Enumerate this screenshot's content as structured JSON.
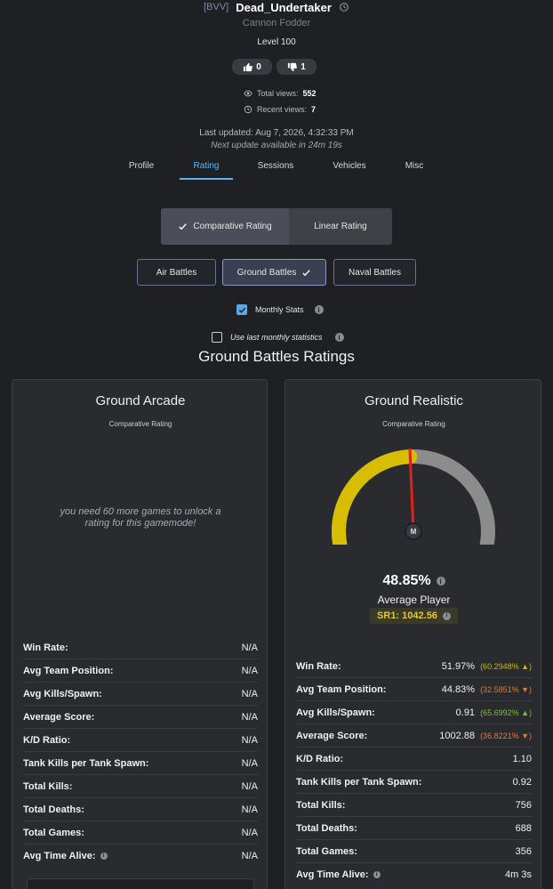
{
  "header": {
    "clan_tag": "[BVV]",
    "username": "Dead_Undertaker",
    "title": "Cannon Fodder",
    "level": "Level 100",
    "likes": "0",
    "dislikes": "1",
    "total_views_label": "Total views:",
    "total_views": "552",
    "recent_views_label": "Recent views:",
    "recent_views": "7",
    "last_updated": "Last updated: Aug 7, 2026, 4:32:33 PM",
    "next_update": "Next update available in 24m 19s"
  },
  "tabs": [
    {
      "label": "Profile",
      "active": false
    },
    {
      "label": "Rating",
      "active": true
    },
    {
      "label": "Sessions",
      "active": false
    },
    {
      "label": "Vehicles",
      "active": false
    },
    {
      "label": "Misc",
      "active": false
    }
  ],
  "rating_toggle": {
    "comparative": "Comparative Rating",
    "linear": "Linear Rating",
    "selected": "comparative"
  },
  "battle_modes": {
    "air": "Air Battles",
    "ground": "Ground Battles",
    "naval": "Naval Battles",
    "selected": "ground"
  },
  "options": {
    "monthly_stats": "Monthly Stats",
    "monthly_checked": true,
    "use_last_monthly": "Use last monthly statistics",
    "use_last_checked": false
  },
  "section_title": "Ground Battles Ratings",
  "arcade": {
    "title": "Ground Arcade",
    "subtitle": "Comparative Rating",
    "locked_message": "you need 60 more games to unlock a rating for this gamemode!",
    "stats": [
      {
        "label": "Win Rate:",
        "value": "N/A"
      },
      {
        "label": "Avg Team Position:",
        "value": "N/A"
      },
      {
        "label": "Avg Kills/Spawn:",
        "value": "N/A"
      },
      {
        "label": "Average Score:",
        "value": "N/A"
      },
      {
        "label": "K/D Ratio:",
        "value": "N/A"
      },
      {
        "label": "Tank Kills per Tank Spawn:",
        "value": "N/A"
      },
      {
        "label": "Total Kills:",
        "value": "N/A"
      },
      {
        "label": "Total Deaths:",
        "value": "N/A"
      },
      {
        "label": "Total Games:",
        "value": "N/A"
      },
      {
        "label": "Avg Time Alive:",
        "value": "N/A"
      }
    ]
  },
  "realistic": {
    "title": "Ground Realistic",
    "subtitle": "Comparative Rating",
    "gauge_fraction": 0.4885,
    "gauge_marker": "M",
    "gauge_colors": {
      "fill": "#d8be00",
      "track": "#8c8c8c",
      "needle": "#e02020"
    },
    "percentile": "48.85%",
    "tier": "Average Player",
    "sr": "SR1: 1042.56",
    "stats": [
      {
        "label": "Win Rate:",
        "value": "51.97%",
        "delta": "(60.2948% ▲)",
        "dir": "up"
      },
      {
        "label": "Avg Team Position:",
        "value": "44.83%",
        "delta": "(32.5851% ▼)",
        "dir": "down"
      },
      {
        "label": "Avg Kills/Spawn:",
        "value": "0.91",
        "delta": "(65.6992% ▲)",
        "dir": "up-green"
      },
      {
        "label": "Average Score:",
        "value": "1002.88",
        "delta": "(36.8221% ▼)",
        "dir": "down"
      },
      {
        "label": "K/D Ratio:",
        "value": "1.10"
      },
      {
        "label": "Tank Kills per Tank Spawn:",
        "value": "0.92"
      },
      {
        "label": "Total Kills:",
        "value": "756"
      },
      {
        "label": "Total Deaths:",
        "value": "688"
      },
      {
        "label": "Total Games:",
        "value": "356"
      },
      {
        "label": "Avg Time Alive:",
        "value": "4m 3s"
      }
    ]
  }
}
